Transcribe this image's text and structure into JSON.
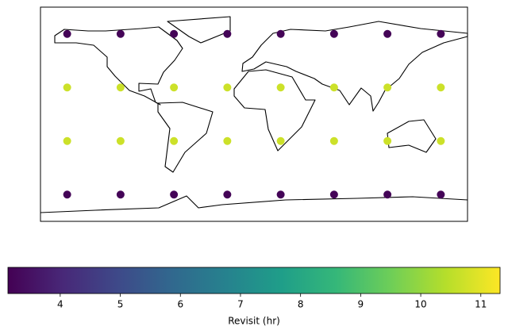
{
  "chart_data": {
    "type": "scatter",
    "x": [
      -157.5,
      -112.5,
      -67.5,
      -22.5,
      22.5,
      67.5,
      112.5,
      157.5,
      -157.5,
      -112.5,
      -67.5,
      -22.5,
      22.5,
      67.5,
      112.5,
      157.5,
      -157.5,
      -112.5,
      -67.5,
      -22.5,
      22.5,
      67.5,
      112.5,
      157.5,
      -157.5,
      -112.5,
      -67.5,
      -22.5,
      22.5,
      67.5,
      112.5,
      157.5
    ],
    "y": [
      67.5,
      67.5,
      67.5,
      67.5,
      67.5,
      67.5,
      67.5,
      67.5,
      22.5,
      22.5,
      22.5,
      22.5,
      22.5,
      22.5,
      22.5,
      22.5,
      -22.5,
      -22.5,
      -22.5,
      -22.5,
      -22.5,
      -22.5,
      -22.5,
      -22.5,
      -67.5,
      -67.5,
      -67.5,
      -67.5,
      -67.5,
      -67.5,
      -67.5,
      -67.5
    ],
    "values": [
      3.2,
      3.2,
      3.2,
      3.2,
      3.2,
      3.2,
      3.2,
      3.2,
      10.7,
      10.7,
      10.7,
      10.7,
      10.7,
      10.7,
      10.7,
      10.7,
      10.7,
      10.7,
      10.7,
      10.7,
      10.7,
      10.7,
      10.7,
      10.7,
      3.2,
      3.2,
      3.2,
      3.2,
      3.2,
      3.2,
      3.2,
      3.2
    ],
    "xlim": [
      -180,
      180
    ],
    "ylim": [
      -90,
      90
    ],
    "cmap": "viridis",
    "colorbar": {
      "label": "Revisit (hr)",
      "clim": [
        3.13,
        11.32
      ],
      "ticks": [
        4,
        5,
        6,
        7,
        8,
        9,
        10,
        11
      ]
    }
  }
}
